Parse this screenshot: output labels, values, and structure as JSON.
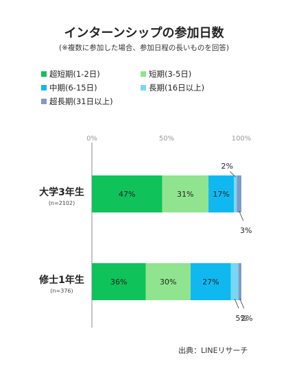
{
  "title": "インターンシップの参加日数",
  "subtitle": "(※複数に参加した場合、参加日程の長いものを回答)",
  "source": "出典：LINEリサーチ",
  "legend": [
    {
      "label": "超短期(1-2日)",
      "color": "#0fc25a"
    },
    {
      "label": "短期(3-5日)",
      "color": "#90e48f"
    },
    {
      "label": "中期(6-15日)",
      "color": "#10b8f0"
    },
    {
      "label": "長期(16日以上)",
      "color": "#76d8f4"
    },
    {
      "label": "超長期(31日以上)",
      "color": "#8298c8"
    }
  ],
  "chart_data": {
    "type": "bar",
    "orientation": "horizontal",
    "stacked": true,
    "categories": [
      "大学3年生",
      "修士1年生"
    ],
    "category_notes": [
      "(n=2102)",
      "(n=376)"
    ],
    "series": [
      {
        "name": "超短期(1-2日)",
        "values": [
          47,
          36
        ],
        "labels": [
          "47%",
          "36%"
        ],
        "color": "#0fc25a"
      },
      {
        "name": "短期(3-5日)",
        "values": [
          31,
          30
        ],
        "labels": [
          "31%",
          "30%"
        ],
        "color": "#90e48f"
      },
      {
        "name": "中期(6-15日)",
        "values": [
          17,
          27
        ],
        "labels": [
          "17%",
          "27%"
        ],
        "color": "#10b8f0"
      },
      {
        "name": "長期(16日以上)",
        "values": [
          2,
          5
        ],
        "labels": [
          "2%",
          "5%"
        ],
        "color": "#76d8f4"
      },
      {
        "name": "超長期(31日以上)",
        "values": [
          3,
          2
        ],
        "labels": [
          "3%",
          "2%"
        ],
        "color": "#8298c8"
      }
    ],
    "xlim": [
      0,
      100
    ],
    "xticks": [
      "0%",
      "50%",
      "100%"
    ],
    "grid": false,
    "legend_position": "top"
  }
}
